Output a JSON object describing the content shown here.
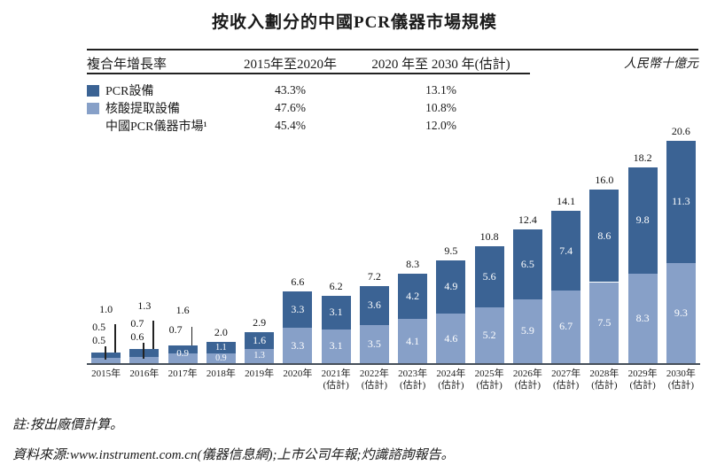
{
  "title": "按收入劃分的中國PCR儀器市場規模",
  "unit_label": "人民幣十億元",
  "cagr_table": {
    "header_cagr": "複合年增長率",
    "header_period1": "2015年至2020年",
    "header_period2": "2020 年至 2030 年(估計)",
    "rows": [
      {
        "label": "PCR設備",
        "swatch": "dark",
        "cagr_2015_2020": "43.3%",
        "cagr_2020_2030": "13.1%"
      },
      {
        "label": "核酸提取設備",
        "swatch": "light",
        "cagr_2015_2020": "47.6%",
        "cagr_2020_2030": "10.8%"
      },
      {
        "label": "中國PCR儀器市場¹",
        "swatch": "none",
        "cagr_2015_2020": "45.4%",
        "cagr_2020_2030": "12.0%"
      }
    ]
  },
  "chart_data": {
    "type": "bar",
    "stacked": true,
    "title": "按收入劃分的中國PCR儀器市場規模",
    "ylabel": "人民幣十億元",
    "ylim": [
      0,
      21
    ],
    "grid": false,
    "legend_position": "top-table",
    "categories": [
      {
        "year": "2015年",
        "note": ""
      },
      {
        "year": "2016年",
        "note": ""
      },
      {
        "year": "2017年",
        "note": ""
      },
      {
        "year": "2018年",
        "note": ""
      },
      {
        "year": "2019年",
        "note": ""
      },
      {
        "year": "2020年",
        "note": ""
      },
      {
        "year": "2021年",
        "note": "(估計)"
      },
      {
        "year": "2022年",
        "note": "(估計)"
      },
      {
        "year": "2023年",
        "note": "(估計)"
      },
      {
        "year": "2024年",
        "note": "(估計)"
      },
      {
        "year": "2025年",
        "note": "(估計)"
      },
      {
        "year": "2026年",
        "note": "(估計)"
      },
      {
        "year": "2027年",
        "note": "(估計)"
      },
      {
        "year": "2028年",
        "note": "(估計)"
      },
      {
        "year": "2029年",
        "note": "(估計)"
      },
      {
        "year": "2030年",
        "note": "(估計)"
      }
    ],
    "series": [
      {
        "name": "PCR設備",
        "position": "top",
        "color": "#3B6394",
        "values": [
          0.5,
          0.7,
          0.7,
          1.1,
          1.6,
          3.3,
          3.1,
          3.6,
          4.2,
          4.9,
          5.6,
          6.5,
          7.4,
          8.6,
          9.8,
          11.3
        ]
      },
      {
        "name": "核酸提取設備",
        "position": "bottom",
        "color": "#87A0C8",
        "values": [
          0.5,
          0.6,
          0.9,
          0.9,
          1.3,
          3.3,
          3.1,
          3.5,
          4.1,
          4.6,
          5.2,
          5.9,
          6.7,
          7.5,
          8.3,
          9.3
        ]
      }
    ],
    "totals": [
      1.0,
      1.3,
      1.6,
      2.0,
      2.9,
      6.6,
      6.2,
      7.2,
      8.3,
      9.5,
      10.8,
      12.4,
      14.1,
      16.0,
      18.2,
      20.6
    ]
  },
  "colors": {
    "dark_blue": "#3B6394",
    "light_blue": "#87A0C8",
    "axis": "#47505A",
    "rule": "#222222"
  },
  "notes": {
    "note": "註:按出廠價計算。",
    "source": "資料來源:www.instrument.com.cn(儀器信息網);上市公司年報;灼識諮詢報告。"
  }
}
